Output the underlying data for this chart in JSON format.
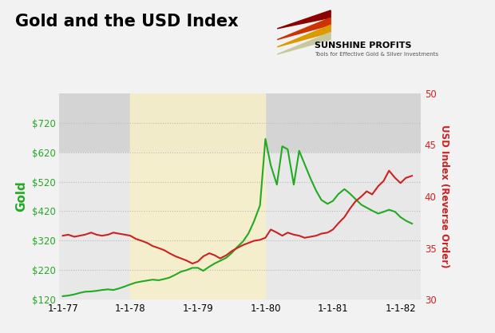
{
  "title": "Gold and the USD Index",
  "title_fontsize": 15,
  "background_color": "#f2f2f2",
  "plot_bg_top_color": "#dcdcdc",
  "plot_bg_bottom_color": "#f0f0f0",
  "highlight_bg_color": "#f7f0c8",
  "highlight_x_start": 1978.0,
  "highlight_x_end": 1980.0,
  "ylabel_left": "Gold",
  "ylabel_right": "USD Index (Reverse Order)",
  "ylabel_color_left": "#22aa22",
  "ylabel_color_right": "#cc2222",
  "gold_color": "#22aa22",
  "usd_color": "#cc2222",
  "gold_linewidth": 1.5,
  "usd_linewidth": 1.5,
  "xlim": [
    1976.95,
    1982.3
  ],
  "ylim_left": [
    120,
    820
  ],
  "ylim_right_top": 50,
  "ylim_right_bottom": 30,
  "xtick_labels": [
    "1-1-77",
    "1-1-78",
    "1-1-79",
    "1-1-80",
    "1-1-81",
    "1-1-82"
  ],
  "xtick_positions": [
    1977.0,
    1978.0,
    1979.0,
    1980.0,
    1981.0,
    1982.0
  ],
  "ytick_left": [
    120,
    220,
    320,
    420,
    520,
    620,
    720
  ],
  "ytick_right": [
    50,
    45,
    40,
    35,
    30
  ],
  "gold_data": [
    [
      1977.0,
      132
    ],
    [
      1977.08,
      134
    ],
    [
      1977.17,
      138
    ],
    [
      1977.25,
      143
    ],
    [
      1977.33,
      147
    ],
    [
      1977.42,
      148
    ],
    [
      1977.5,
      150
    ],
    [
      1977.58,
      153
    ],
    [
      1977.67,
      155
    ],
    [
      1977.75,
      153
    ],
    [
      1977.83,
      158
    ],
    [
      1977.92,
      165
    ],
    [
      1978.0,
      172
    ],
    [
      1978.08,
      178
    ],
    [
      1978.17,
      182
    ],
    [
      1978.25,
      185
    ],
    [
      1978.33,
      188
    ],
    [
      1978.42,
      186
    ],
    [
      1978.5,
      190
    ],
    [
      1978.58,
      195
    ],
    [
      1978.67,
      205
    ],
    [
      1978.75,
      215
    ],
    [
      1978.83,
      220
    ],
    [
      1978.92,
      228
    ],
    [
      1979.0,
      228
    ],
    [
      1979.08,
      218
    ],
    [
      1979.17,
      232
    ],
    [
      1979.25,
      243
    ],
    [
      1979.33,
      252
    ],
    [
      1979.42,
      262
    ],
    [
      1979.5,
      278
    ],
    [
      1979.58,
      298
    ],
    [
      1979.67,
      318
    ],
    [
      1979.75,
      345
    ],
    [
      1979.83,
      385
    ],
    [
      1979.92,
      440
    ],
    [
      1980.0,
      665
    ],
    [
      1980.08,
      575
    ],
    [
      1980.17,
      510
    ],
    [
      1980.25,
      640
    ],
    [
      1980.33,
      630
    ],
    [
      1980.42,
      510
    ],
    [
      1980.5,
      625
    ],
    [
      1980.58,
      580
    ],
    [
      1980.67,
      530
    ],
    [
      1980.75,
      490
    ],
    [
      1980.83,
      458
    ],
    [
      1980.92,
      445
    ],
    [
      1981.0,
      455
    ],
    [
      1981.08,
      478
    ],
    [
      1981.17,
      495
    ],
    [
      1981.25,
      480
    ],
    [
      1981.33,
      462
    ],
    [
      1981.42,
      442
    ],
    [
      1981.5,
      432
    ],
    [
      1981.58,
      422
    ],
    [
      1981.67,
      412
    ],
    [
      1981.75,
      418
    ],
    [
      1981.83,
      425
    ],
    [
      1981.92,
      418
    ],
    [
      1982.0,
      400
    ],
    [
      1982.08,
      388
    ],
    [
      1982.17,
      378
    ]
  ],
  "usd_data": [
    [
      1977.0,
      36.2
    ],
    [
      1977.08,
      36.3
    ],
    [
      1977.17,
      36.1
    ],
    [
      1977.25,
      36.2
    ],
    [
      1977.33,
      36.3
    ],
    [
      1977.42,
      36.5
    ],
    [
      1977.5,
      36.3
    ],
    [
      1977.58,
      36.2
    ],
    [
      1977.67,
      36.3
    ],
    [
      1977.75,
      36.5
    ],
    [
      1977.83,
      36.4
    ],
    [
      1977.92,
      36.3
    ],
    [
      1978.0,
      36.2
    ],
    [
      1978.08,
      35.9
    ],
    [
      1978.17,
      35.7
    ],
    [
      1978.25,
      35.5
    ],
    [
      1978.33,
      35.2
    ],
    [
      1978.42,
      35.0
    ],
    [
      1978.5,
      34.8
    ],
    [
      1978.58,
      34.5
    ],
    [
      1978.67,
      34.2
    ],
    [
      1978.75,
      34.0
    ],
    [
      1978.83,
      33.8
    ],
    [
      1978.92,
      33.5
    ],
    [
      1979.0,
      33.7
    ],
    [
      1979.08,
      34.2
    ],
    [
      1979.17,
      34.5
    ],
    [
      1979.25,
      34.3
    ],
    [
      1979.33,
      34.0
    ],
    [
      1979.42,
      34.3
    ],
    [
      1979.5,
      34.7
    ],
    [
      1979.58,
      35.0
    ],
    [
      1979.67,
      35.3
    ],
    [
      1979.75,
      35.5
    ],
    [
      1979.83,
      35.7
    ],
    [
      1979.92,
      35.8
    ],
    [
      1980.0,
      36.0
    ],
    [
      1980.08,
      36.8
    ],
    [
      1980.17,
      36.5
    ],
    [
      1980.25,
      36.2
    ],
    [
      1980.33,
      36.5
    ],
    [
      1980.42,
      36.3
    ],
    [
      1980.5,
      36.2
    ],
    [
      1980.58,
      36.0
    ],
    [
      1980.67,
      36.1
    ],
    [
      1980.75,
      36.2
    ],
    [
      1980.83,
      36.4
    ],
    [
      1980.92,
      36.5
    ],
    [
      1981.0,
      36.8
    ],
    [
      1981.08,
      37.4
    ],
    [
      1981.17,
      38.0
    ],
    [
      1981.25,
      38.8
    ],
    [
      1981.33,
      39.5
    ],
    [
      1981.42,
      40.0
    ],
    [
      1981.5,
      40.5
    ],
    [
      1981.58,
      40.2
    ],
    [
      1981.67,
      41.0
    ],
    [
      1981.75,
      41.5
    ],
    [
      1981.83,
      42.5
    ],
    [
      1981.92,
      41.8
    ],
    [
      1982.0,
      41.3
    ],
    [
      1982.08,
      41.8
    ],
    [
      1982.17,
      42.0
    ]
  ],
  "grid_color": "#bbbbbb",
  "logo_colors": [
    "#8b0000",
    "#cc4400",
    "#ddaa00",
    "#c8c8a0"
  ],
  "sunshine_text": "SUNSHINE PROFITS",
  "subtitle_text": "Tools for Effective Gold & Silver Investments"
}
